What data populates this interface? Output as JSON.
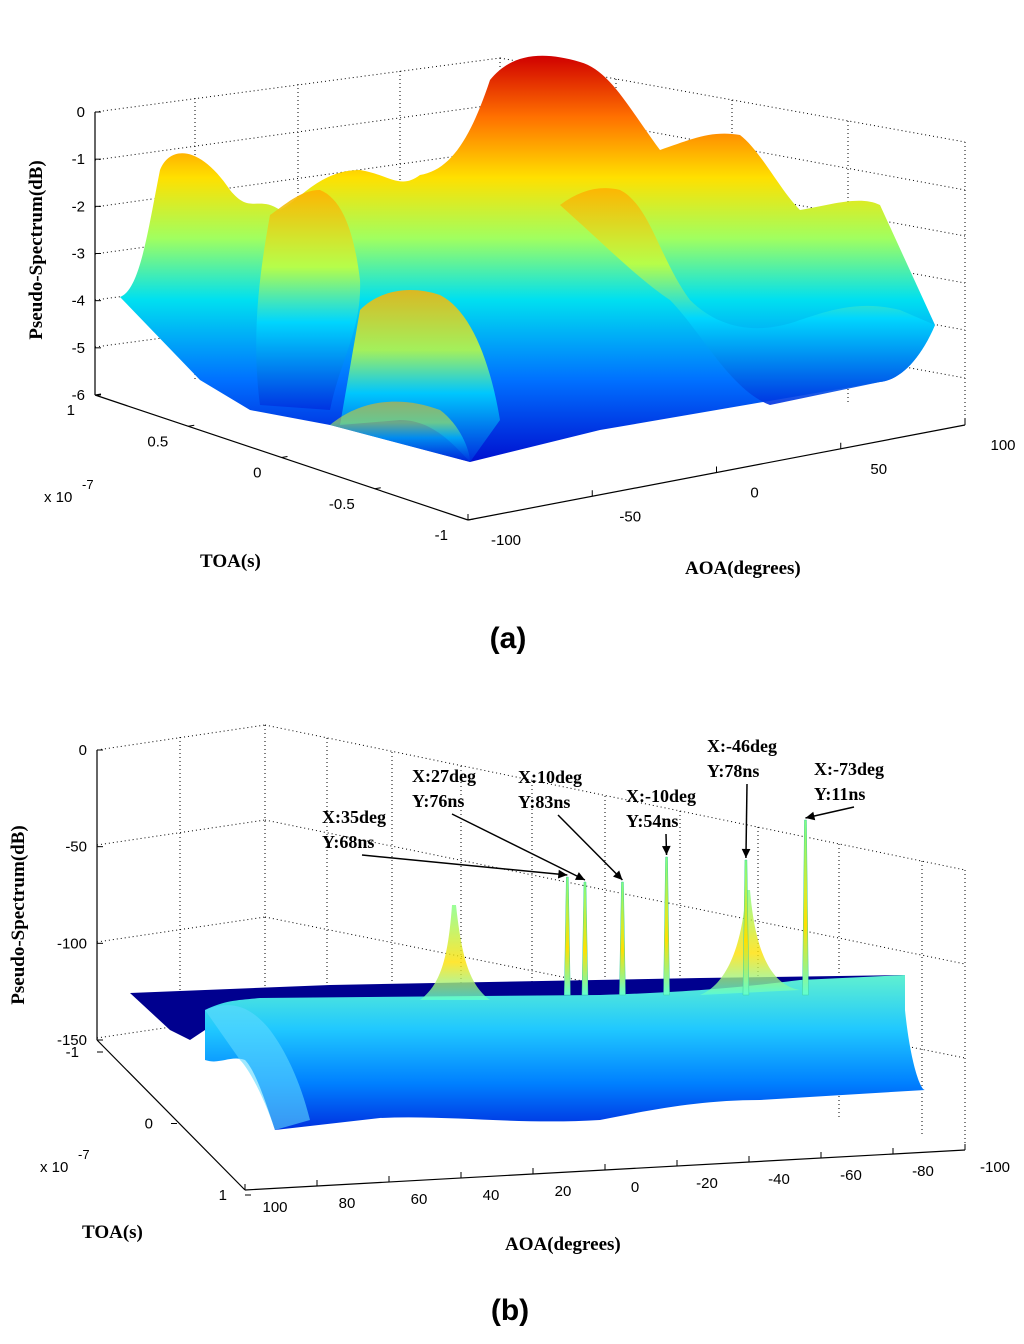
{
  "chart_data": [
    {
      "type": "surface",
      "panel_label": "(a)",
      "title": "",
      "zlabel": "Pseudo-Spectrum(dB)",
      "ylabel": "TOA(s)",
      "xlabel": "AOA(degrees)",
      "y_exponent": "x 10",
      "y_exponent_power": "-7",
      "z_ticks": [
        "0",
        "-1",
        "-2",
        "-3",
        "-4",
        "-5",
        "-6"
      ],
      "y_ticks": [
        "1",
        "0.5",
        "0",
        "-0.5",
        "-1"
      ],
      "x_ticks": [
        "-100",
        "-50",
        "0",
        "50",
        "100"
      ],
      "xlim": [
        -100,
        100
      ],
      "ylim": [
        -1e-07,
        1e-07
      ],
      "zlim": [
        -6,
        0
      ],
      "grid": true,
      "colormap": "jet"
    },
    {
      "type": "surface",
      "panel_label": "(b)",
      "title": "",
      "zlabel": "Pseudo-Spectrum(dB)",
      "ylabel": "TOA(s)",
      "xlabel": "AOA(degrees)",
      "y_exponent": "x 10",
      "y_exponent_power": "-7",
      "z_ticks": [
        "0",
        "-50",
        "-100",
        "-150"
      ],
      "y_ticks": [
        "-1",
        "0",
        "1"
      ],
      "x_ticks": [
        "100",
        "80",
        "60",
        "40",
        "20",
        "0",
        "-20",
        "-40",
        "-60",
        "-80",
        "-100"
      ],
      "xlim": [
        -100,
        100
      ],
      "ylim": [
        -1e-07,
        1e-07
      ],
      "zlim": [
        -150,
        0
      ],
      "grid": true,
      "colormap": "jet",
      "peaks": [
        {
          "x_label": "X:35deg",
          "y_label": "Y:68ns",
          "aoa": 35,
          "toa_ns": 68
        },
        {
          "x_label": "X:27deg",
          "y_label": "Y:76ns",
          "aoa": 27,
          "toa_ns": 76
        },
        {
          "x_label": "X:10deg",
          "y_label": "Y:83ns",
          "aoa": 10,
          "toa_ns": 83
        },
        {
          "x_label": "X:-10deg",
          "y_label": "Y:54ns",
          "aoa": -10,
          "toa_ns": 54
        },
        {
          "x_label": "X:-46deg",
          "y_label": "Y:78ns",
          "aoa": -46,
          "toa_ns": 78
        },
        {
          "x_label": "X:-73deg",
          "y_label": "Y:11ns",
          "aoa": -73,
          "toa_ns": 11
        }
      ]
    }
  ],
  "colors": {
    "jet_dark_blue": "#00008f",
    "jet_blue": "#0050ff",
    "jet_cyan": "#00e0ff",
    "jet_green": "#80ff80",
    "jet_yellow": "#ffe000",
    "jet_orange": "#ff7000",
    "jet_red": "#d00000"
  }
}
